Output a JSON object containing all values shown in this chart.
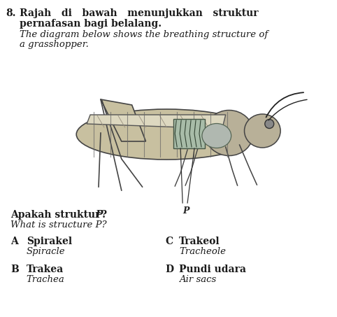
{
  "background_color": "#ffffff",
  "text_color": "#1a1a1a",
  "question_number": "8.",
  "title_line1_malay": "Rajah   di   bawah   menunjukkan   struktur",
  "title_line2_malay": "pernafasan bagi belalang.",
  "title_line1_english": "The diagram below shows the breathing structure of",
  "title_line2_english": "a grasshopper.",
  "question_malay_pre": "Apakah struktur ",
  "question_malay_P": "P",
  "question_malay_post": "?",
  "question_english": "What is structure P?",
  "label_P": "P",
  "options": [
    {
      "letter": "A",
      "malay": "Spirakel",
      "english": "Spiracle"
    },
    {
      "letter": "B",
      "malay": "Trakea",
      "english": "Trachea"
    },
    {
      "letter": "C",
      "malay": "Trakeol",
      "english": "Tracheole"
    },
    {
      "letter": "D",
      "malay": "Pundi udara",
      "english": "Air sacs"
    }
  ],
  "body_color": "#c8c0a0",
  "body_edge": "#444444",
  "wing_color": "#ddd8c0",
  "wing_edge": "#555555",
  "head_color": "#b8b098",
  "segment_color": "#666666",
  "trachea_fill": "#a8bca8",
  "trachea_edge": "#445544",
  "airsac_fill": "#b0b8b0",
  "airsac_edge": "#556655",
  "leg_color": "#444444",
  "antenna_color": "#222222"
}
